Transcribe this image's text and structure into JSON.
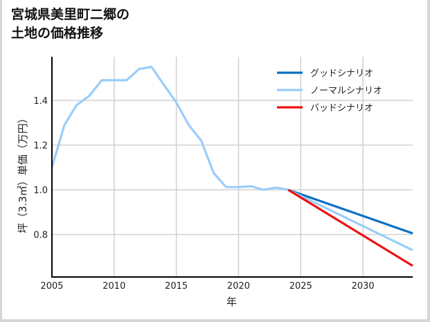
{
  "title": "宮城県美里町二郷の\n土地の価格推移",
  "chart_data": {
    "type": "line",
    "title": "宮城県美里町二郷の土地の価格推移",
    "xlabel": "年",
    "ylabel": "坪（3.3㎡）単価（万円）",
    "xlim": [
      2005,
      2034
    ],
    "ylim": [
      0.61,
      1.595
    ],
    "x_ticks": [
      2005,
      2010,
      2015,
      2020,
      2025,
      2030
    ],
    "y_ticks": [
      0.8,
      1.0,
      1.2,
      1.4
    ],
    "grid": true,
    "legend_position": "upper right",
    "series": [
      {
        "name": "グッドシナリオ",
        "color": "#0a6fc2",
        "x": [
          2024,
          2034
        ],
        "values": [
          1.0,
          0.805
        ]
      },
      {
        "name": "ノーマルシナリオ",
        "color": "#99cdfa",
        "x": [
          2005,
          2006,
          2007,
          2008,
          2009,
          2010,
          2011,
          2012,
          2013,
          2014,
          2015,
          2016,
          2017,
          2018,
          2019,
          2020,
          2021,
          2022,
          2023,
          2024,
          2034
        ],
        "values": [
          1.1,
          1.29,
          1.38,
          1.42,
          1.49,
          1.49,
          1.49,
          1.54,
          1.55,
          1.47,
          1.39,
          1.29,
          1.22,
          1.075,
          1.012,
          1.012,
          1.016,
          1.0,
          1.01,
          1.0,
          0.73
        ]
      },
      {
        "name": "バッドシナリオ",
        "color": "#ee1111",
        "x": [
          2024,
          2034
        ],
        "values": [
          1.0,
          0.66
        ]
      }
    ]
  }
}
